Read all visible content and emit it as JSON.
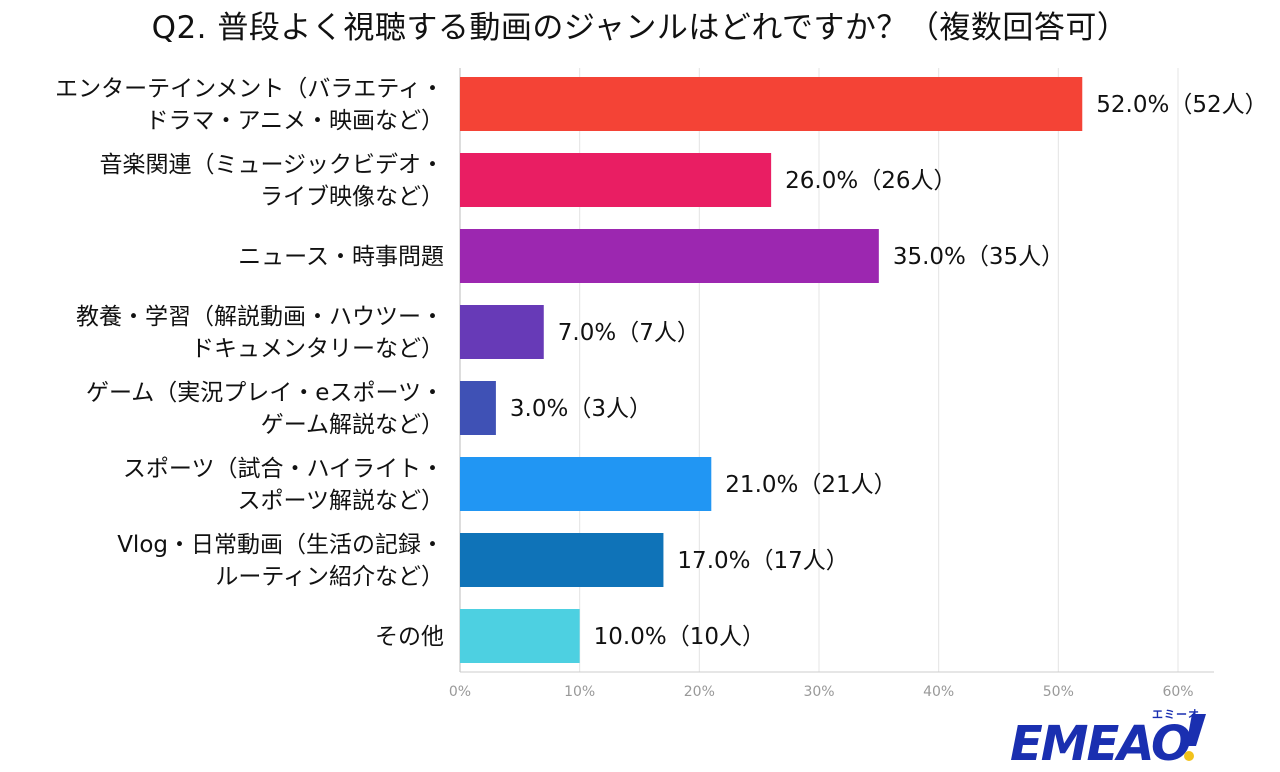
{
  "chart_data": {
    "type": "bar",
    "orientation": "horizontal",
    "title": "Q2. 普段よく視聴する動画のジャンルはどれですか？（複数回答可）",
    "categories": [
      [
        "エンターテインメント（バラエティ・",
        "ドラマ・アニメ・映画など）"
      ],
      [
        "音楽関連（ミュージックビデオ・",
        "ライブ映像など）"
      ],
      [
        "ニュース・時事問題"
      ],
      [
        "教養・学習（解説動画・ハウツー・",
        "ドキュメンタリーなど）"
      ],
      [
        "ゲーム（実況プレイ・eスポーツ・",
        "ゲーム解説など）"
      ],
      [
        "スポーツ（試合・ハイライト・",
        "スポーツ解説など）"
      ],
      [
        "Vlog・日常動画（生活の記録・",
        "ルーティン紹介など）"
      ],
      [
        "その他"
      ]
    ],
    "values": [
      52.0,
      26.0,
      35.0,
      7.0,
      3.0,
      21.0,
      17.0,
      10.0
    ],
    "value_labels": [
      "52.0%（52人）",
      "26.0%（26人）",
      "35.0%（35人）",
      "7.0%（7人）",
      "3.0%（3人）",
      "21.0%（21人）",
      "17.0%（17人）",
      "10.0%（10人）"
    ],
    "colors": [
      "#f44336",
      "#e91e63",
      "#9c27b0",
      "#673ab7",
      "#3f51b5",
      "#2196f3",
      "#0f73b8",
      "#4dd0e1"
    ],
    "xlim": [
      0,
      63
    ],
    "xticks": [
      0,
      10,
      20,
      30,
      40,
      50,
      60
    ],
    "xtick_labels": [
      "0%",
      "10%",
      "20%",
      "30%",
      "40%",
      "50%",
      "60%"
    ],
    "grid": true,
    "legend": "none"
  },
  "logo": {
    "text": "EMEAO!",
    "sub": "エミーオ",
    "color": "#1a2fb0",
    "accent": "#f2c21b"
  }
}
